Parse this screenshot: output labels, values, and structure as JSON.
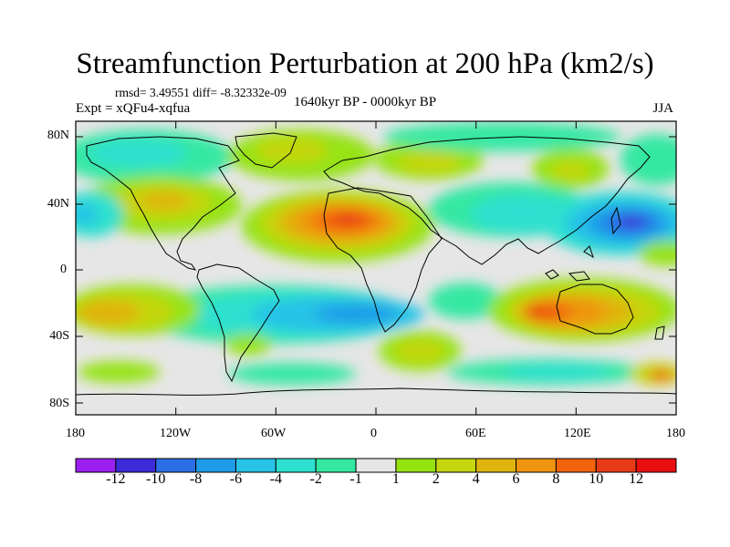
{
  "title": "Streamfunction Perturbation at 200 hPa (km2/s)",
  "stats": "rmsd= 3.49551 diff= -8.32332e-09",
  "experiment": "Expt = xQFu4-xqfua",
  "period": "1640kyr BP - 0000kyr BP",
  "season": "JJA",
  "lat_axis": [
    "80N",
    "40N",
    "0",
    "40S",
    "80S"
  ],
  "lon_axis": [
    "180",
    "120W",
    "60W",
    "0",
    "60E",
    "120E",
    "180"
  ],
  "colorbar": {
    "labels": [
      "-12",
      "-10",
      "-8",
      "-6",
      "-4",
      "-2",
      "-1",
      "1",
      "2",
      "4",
      "6",
      "8",
      "10",
      "12"
    ],
    "colors": [
      "#9b1ff0",
      "#3c2bd8",
      "#2b6ee6",
      "#1f9be8",
      "#28c3e6",
      "#2ee0cf",
      "#35e8a2",
      "#e6e6e6",
      "#96e312",
      "#c5d60f",
      "#e0b40f",
      "#ef9410",
      "#f2630c",
      "#e63b16",
      "#ea0f0f"
    ]
  }
}
